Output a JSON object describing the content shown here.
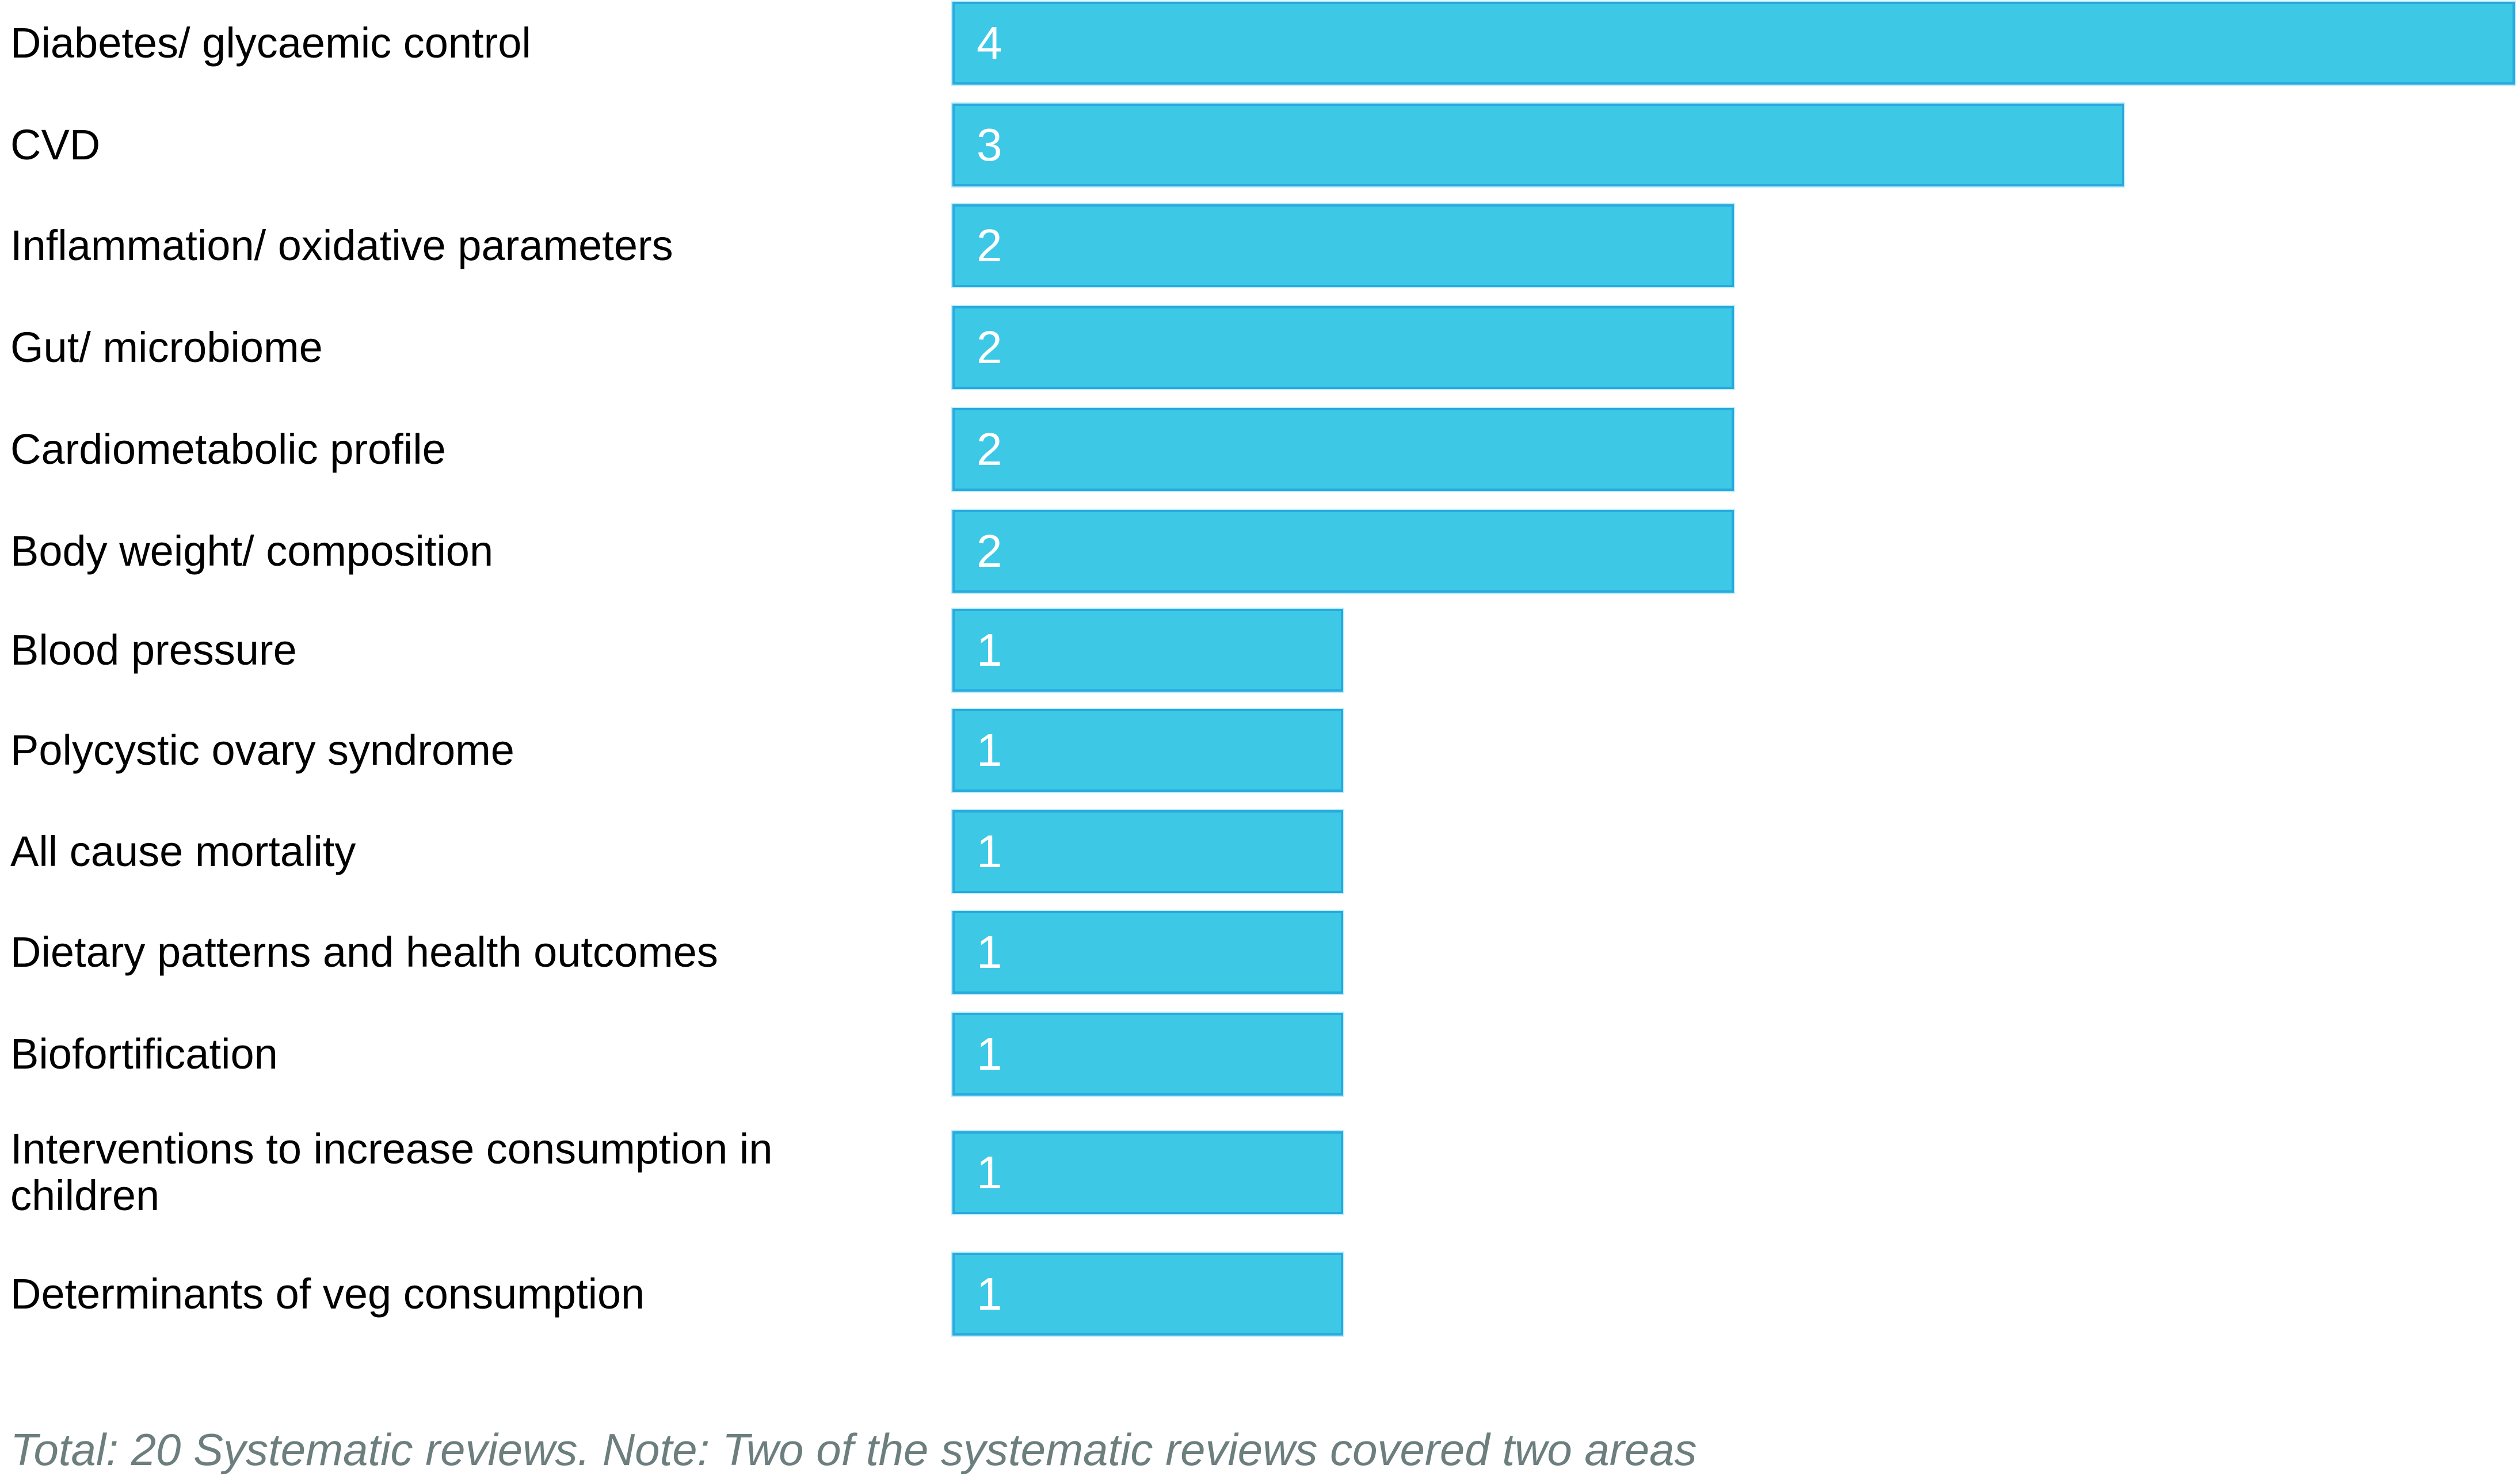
{
  "chart_data": {
    "type": "bar",
    "orientation": "horizontal",
    "title": "",
    "xlabel": "",
    "ylabel": "",
    "xlim": [
      0,
      4
    ],
    "gridlines": false,
    "legend": "none",
    "data_label_position": "inside-left",
    "categories": [
      "Diabetes/ glycaemic control",
      "CVD",
      "Inflammation/ oxidative parameters",
      "Gut/ microbiome",
      "Cardiometabolic profile",
      "Body weight/ composition",
      "Blood pressure",
      "Polycystic ovary syndrome",
      "All cause mortality",
      "Dietary patterns and health outcomes",
      "Biofortification",
      "Interventions to increase consumption in children",
      "Determinants of veg consumption"
    ],
    "values": [
      4,
      3,
      2,
      2,
      2,
      2,
      1,
      1,
      1,
      1,
      1,
      1,
      1
    ],
    "colors": {
      "bar_fill": "#3dc8e6",
      "bar_border": "#2aa9de",
      "value_label": "#ffffff",
      "category_label": "#000000",
      "note_text": "#6c7e7e"
    },
    "note": "Total: 20 Systematic reviews. Note: Two of the systematic reviews covered two areas"
  },
  "rows": [
    {
      "label": "Diabetes/ glycaemic control",
      "value": 4
    },
    {
      "label": "CVD",
      "value": 3
    },
    {
      "label": "Inflammation/ oxidative parameters",
      "value": 2
    },
    {
      "label": "Gut/ microbiome",
      "value": 2
    },
    {
      "label": "Cardiometabolic profile",
      "value": 2
    },
    {
      "label": "Body weight/ composition",
      "value": 2
    },
    {
      "label": "Blood pressure",
      "value": 1
    },
    {
      "label": "Polycystic ovary syndrome",
      "value": 1
    },
    {
      "label": "All cause mortality",
      "value": 1
    },
    {
      "label": "Dietary patterns and health outcomes",
      "value": 1
    },
    {
      "label": "Biofortification",
      "value": 1
    },
    {
      "label": "Interventions to increase consumption in children",
      "value": 1,
      "label_lines": [
        "Interventions to increase consumption in",
        "children"
      ]
    },
    {
      "label": "Determinants of veg consumption",
      "value": 1
    }
  ],
  "footer": {
    "text": "Total: 20 Systematic reviews. Note: Two of the systematic reviews covered two areas"
  }
}
